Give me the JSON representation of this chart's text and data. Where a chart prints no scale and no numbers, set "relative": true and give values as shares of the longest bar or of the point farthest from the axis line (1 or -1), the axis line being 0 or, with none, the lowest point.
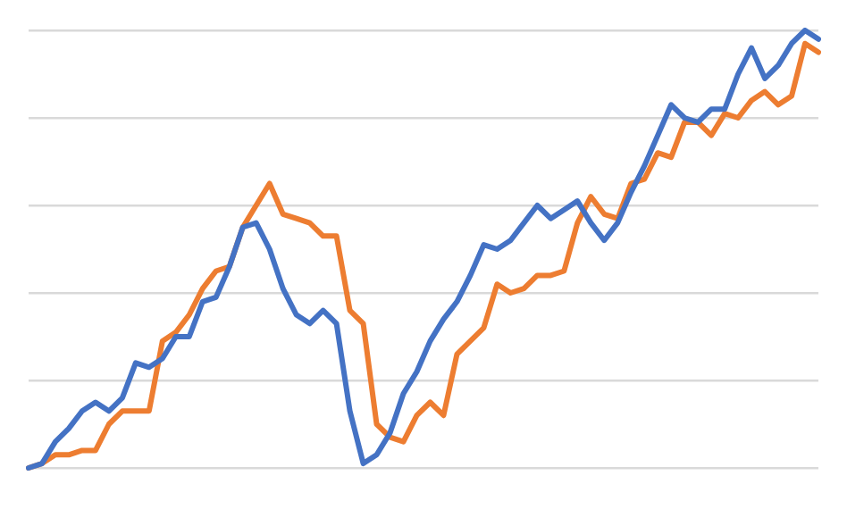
{
  "chart_data": {
    "type": "line",
    "relative": true,
    "grid": "y",
    "legend": false,
    "marker": "none",
    "line_style": "solid",
    "categories": [
      null,
      null,
      null,
      null,
      null,
      null,
      null,
      null,
      null,
      null,
      null,
      null,
      null,
      null,
      null,
      null,
      null,
      null,
      null,
      null,
      null,
      null,
      null,
      null,
      null,
      null,
      null,
      null,
      null,
      null,
      null,
      null,
      null,
      null,
      null,
      null,
      null,
      null,
      null,
      null,
      null,
      null,
      null,
      null,
      null,
      null,
      null,
      null,
      null,
      null,
      null,
      null,
      null,
      null,
      null,
      null,
      null,
      null,
      null,
      null
    ],
    "series": [
      {
        "color": "#4472c4",
        "values": [
          0,
          0.01,
          0.06,
          0.09,
          0.13,
          0.15,
          0.13,
          0.16,
          0.24,
          0.23,
          0.25,
          0.3,
          0.3,
          0.38,
          0.39,
          0.46,
          0.55,
          0.56,
          0.5,
          0.41,
          0.35,
          0.33,
          0.36,
          0.33,
          0.13,
          0.01,
          0.03,
          0.08,
          0.17,
          0.22,
          0.29,
          0.34,
          0.38,
          0.44,
          0.51,
          0.5,
          0.52,
          0.56,
          0.6,
          0.57,
          0.59,
          0.61,
          0.56,
          0.52,
          0.56,
          0.63,
          0.69,
          0.76,
          0.83,
          0.8,
          0.79,
          0.82,
          0.82,
          0.9,
          0.96,
          0.89,
          0.92,
          0.97,
          1,
          0.98
        ]
      },
      {
        "color": "#ed7d31",
        "values": [
          0,
          0.01,
          0.03,
          0.03,
          0.04,
          0.04,
          0.1,
          0.13,
          0.13,
          0.13,
          0.29,
          0.31,
          0.35,
          0.41,
          0.45,
          0.46,
          0.55,
          0.6,
          0.65,
          0.58,
          0.57,
          0.56,
          0.53,
          0.53,
          0.36,
          0.33,
          0.1,
          0.07,
          0.06,
          0.12,
          0.15,
          0.12,
          0.26,
          0.29,
          0.32,
          0.42,
          0.4,
          0.41,
          0.44,
          0.44,
          0.45,
          0.56,
          0.62,
          0.58,
          0.57,
          0.65,
          0.66,
          0.72,
          0.71,
          0.79,
          0.79,
          0.76,
          0.81,
          0.8,
          0.84,
          0.86,
          0.83,
          0.85,
          0.97,
          0.95
        ]
      }
    ]
  }
}
